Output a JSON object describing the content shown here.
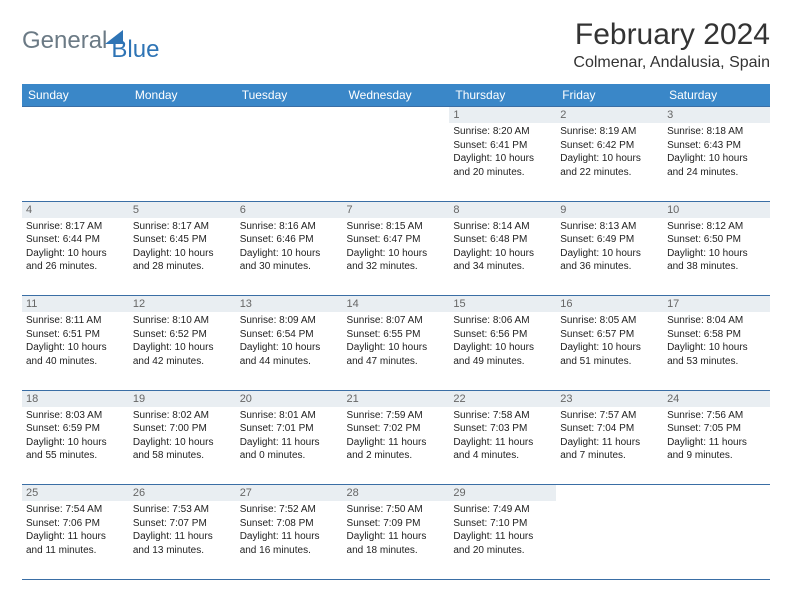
{
  "logo": {
    "word1": "General",
    "word2": "Blue"
  },
  "title": "February 2024",
  "location": "Colmenar, Andalusia, Spain",
  "colors": {
    "header_bg": "#3a87c8",
    "header_text": "#ffffff",
    "daynum_bg": "#e9eef2",
    "daynum_text": "#666666",
    "rule": "#3a6ea5",
    "body_text": "#222222",
    "logo_gray": "#6b7a85",
    "logo_blue": "#2e74b5"
  },
  "layout": {
    "columns": 7,
    "first_weekday_index": 4
  },
  "weekdays": [
    "Sunday",
    "Monday",
    "Tuesday",
    "Wednesday",
    "Thursday",
    "Friday",
    "Saturday"
  ],
  "days": [
    {
      "n": 1,
      "sunrise": "8:20 AM",
      "sunset": "6:41 PM",
      "daylight": "10 hours and 20 minutes."
    },
    {
      "n": 2,
      "sunrise": "8:19 AM",
      "sunset": "6:42 PM",
      "daylight": "10 hours and 22 minutes."
    },
    {
      "n": 3,
      "sunrise": "8:18 AM",
      "sunset": "6:43 PM",
      "daylight": "10 hours and 24 minutes."
    },
    {
      "n": 4,
      "sunrise": "8:17 AM",
      "sunset": "6:44 PM",
      "daylight": "10 hours and 26 minutes."
    },
    {
      "n": 5,
      "sunrise": "8:17 AM",
      "sunset": "6:45 PM",
      "daylight": "10 hours and 28 minutes."
    },
    {
      "n": 6,
      "sunrise": "8:16 AM",
      "sunset": "6:46 PM",
      "daylight": "10 hours and 30 minutes."
    },
    {
      "n": 7,
      "sunrise": "8:15 AM",
      "sunset": "6:47 PM",
      "daylight": "10 hours and 32 minutes."
    },
    {
      "n": 8,
      "sunrise": "8:14 AM",
      "sunset": "6:48 PM",
      "daylight": "10 hours and 34 minutes."
    },
    {
      "n": 9,
      "sunrise": "8:13 AM",
      "sunset": "6:49 PM",
      "daylight": "10 hours and 36 minutes."
    },
    {
      "n": 10,
      "sunrise": "8:12 AM",
      "sunset": "6:50 PM",
      "daylight": "10 hours and 38 minutes."
    },
    {
      "n": 11,
      "sunrise": "8:11 AM",
      "sunset": "6:51 PM",
      "daylight": "10 hours and 40 minutes."
    },
    {
      "n": 12,
      "sunrise": "8:10 AM",
      "sunset": "6:52 PM",
      "daylight": "10 hours and 42 minutes."
    },
    {
      "n": 13,
      "sunrise": "8:09 AM",
      "sunset": "6:54 PM",
      "daylight": "10 hours and 44 minutes."
    },
    {
      "n": 14,
      "sunrise": "8:07 AM",
      "sunset": "6:55 PM",
      "daylight": "10 hours and 47 minutes."
    },
    {
      "n": 15,
      "sunrise": "8:06 AM",
      "sunset": "6:56 PM",
      "daylight": "10 hours and 49 minutes."
    },
    {
      "n": 16,
      "sunrise": "8:05 AM",
      "sunset": "6:57 PM",
      "daylight": "10 hours and 51 minutes."
    },
    {
      "n": 17,
      "sunrise": "8:04 AM",
      "sunset": "6:58 PM",
      "daylight": "10 hours and 53 minutes."
    },
    {
      "n": 18,
      "sunrise": "8:03 AM",
      "sunset": "6:59 PM",
      "daylight": "10 hours and 55 minutes."
    },
    {
      "n": 19,
      "sunrise": "8:02 AM",
      "sunset": "7:00 PM",
      "daylight": "10 hours and 58 minutes."
    },
    {
      "n": 20,
      "sunrise": "8:01 AM",
      "sunset": "7:01 PM",
      "daylight": "11 hours and 0 minutes."
    },
    {
      "n": 21,
      "sunrise": "7:59 AM",
      "sunset": "7:02 PM",
      "daylight": "11 hours and 2 minutes."
    },
    {
      "n": 22,
      "sunrise": "7:58 AM",
      "sunset": "7:03 PM",
      "daylight": "11 hours and 4 minutes."
    },
    {
      "n": 23,
      "sunrise": "7:57 AM",
      "sunset": "7:04 PM",
      "daylight": "11 hours and 7 minutes."
    },
    {
      "n": 24,
      "sunrise": "7:56 AM",
      "sunset": "7:05 PM",
      "daylight": "11 hours and 9 minutes."
    },
    {
      "n": 25,
      "sunrise": "7:54 AM",
      "sunset": "7:06 PM",
      "daylight": "11 hours and 11 minutes."
    },
    {
      "n": 26,
      "sunrise": "7:53 AM",
      "sunset": "7:07 PM",
      "daylight": "11 hours and 13 minutes."
    },
    {
      "n": 27,
      "sunrise": "7:52 AM",
      "sunset": "7:08 PM",
      "daylight": "11 hours and 16 minutes."
    },
    {
      "n": 28,
      "sunrise": "7:50 AM",
      "sunset": "7:09 PM",
      "daylight": "11 hours and 18 minutes."
    },
    {
      "n": 29,
      "sunrise": "7:49 AM",
      "sunset": "7:10 PM",
      "daylight": "11 hours and 20 minutes."
    }
  ],
  "labels": {
    "sunrise": "Sunrise: ",
    "sunset": "Sunset: ",
    "daylight": "Daylight: "
  }
}
